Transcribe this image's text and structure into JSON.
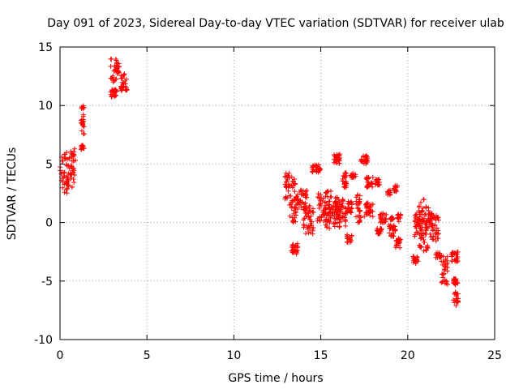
{
  "chart_data": {
    "type": "scatter",
    "title": "Day 091 of 2023, Sidereal Day-to-day VTEC variation (SDTVAR) for receiver ulab",
    "xlabel": "GPS time / hours",
    "ylabel": "SDTVAR / TECUs",
    "xlim": [
      0,
      25
    ],
    "ylim": [
      -10,
      15
    ],
    "xticks": [
      0,
      5,
      10,
      15,
      20,
      25
    ],
    "yticks": [
      -10,
      -5,
      0,
      5,
      10,
      15
    ],
    "grid": true,
    "marker": "+",
    "color": "#ff0000",
    "series": [
      {
        "name": "SDTVAR",
        "clusters": [
          [
            0.0,
            0.6,
            2.5,
            6.0
          ],
          [
            0.6,
            0.9,
            3.0,
            6.3
          ],
          [
            1.2,
            1.4,
            6.2,
            6.6
          ],
          [
            1.2,
            1.4,
            7.5,
            10.0
          ],
          [
            2.9,
            3.3,
            10.7,
            11.4
          ],
          [
            2.9,
            3.4,
            12.0,
            14.0
          ],
          [
            3.5,
            3.9,
            11.2,
            12.8
          ],
          [
            12.9,
            13.2,
            2.0,
            4.3
          ],
          [
            13.2,
            13.6,
            0.0,
            4.0
          ],
          [
            13.3,
            13.7,
            -2.7,
            -1.8
          ],
          [
            13.5,
            14.2,
            1.0,
            2.8
          ],
          [
            14.0,
            14.6,
            -1.0,
            1.6
          ],
          [
            14.5,
            15.0,
            4.3,
            5.0
          ],
          [
            14.8,
            15.6,
            0.0,
            2.8
          ],
          [
            15.2,
            16.5,
            -0.5,
            1.6
          ],
          [
            15.7,
            16.1,
            5.0,
            5.9
          ],
          [
            15.8,
            16.3,
            1.0,
            2.2
          ],
          [
            16.2,
            16.5,
            3.0,
            4.3
          ],
          [
            16.5,
            16.8,
            -1.7,
            -1.0
          ],
          [
            16.5,
            16.8,
            0.8,
            1.8
          ],
          [
            16.7,
            17.0,
            3.8,
            4.2
          ],
          [
            17.0,
            17.3,
            0.0,
            2.6
          ],
          [
            17.3,
            17.7,
            5.0,
            5.8
          ],
          [
            17.5,
            18.0,
            0.5,
            1.8
          ],
          [
            17.6,
            18.0,
            3.0,
            4.0
          ],
          [
            18.1,
            18.4,
            3.2,
            3.7
          ],
          [
            18.2,
            18.5,
            -1.0,
            -0.5
          ],
          [
            18.4,
            18.8,
            0.0,
            0.8
          ],
          [
            18.8,
            19.0,
            2.3,
            2.8
          ],
          [
            18.9,
            19.3,
            -1.2,
            -0.2
          ],
          [
            19.0,
            19.2,
            0.2,
            0.5
          ],
          [
            19.2,
            19.4,
            2.5,
            3.2
          ],
          [
            19.3,
            19.6,
            -2.2,
            -1.3
          ],
          [
            19.4,
            19.6,
            0.0,
            0.8
          ],
          [
            20.3,
            20.6,
            -3.5,
            -2.8
          ],
          [
            20.4,
            20.9,
            -1.5,
            1.0
          ],
          [
            20.6,
            21.2,
            -2.5,
            2.0
          ],
          [
            21.0,
            21.5,
            -1.0,
            0.8
          ],
          [
            21.3,
            21.8,
            -1.7,
            0.6
          ],
          [
            21.6,
            21.9,
            -3.0,
            -2.5
          ],
          [
            21.9,
            22.3,
            -5.3,
            -2.8
          ],
          [
            22.5,
            22.9,
            -3.4,
            -2.5
          ],
          [
            22.6,
            22.9,
            -5.4,
            -4.8
          ],
          [
            22.6,
            22.9,
            -7.1,
            -5.9
          ]
        ]
      }
    ]
  }
}
